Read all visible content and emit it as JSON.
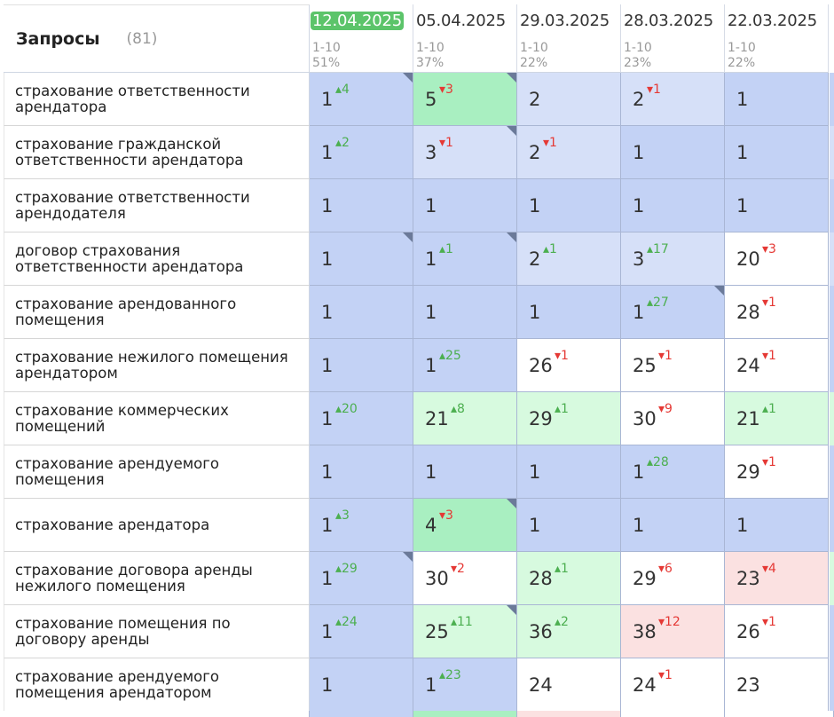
{
  "header": {
    "title": "Запросы",
    "count": "(81)"
  },
  "dates": [
    {
      "date": "12.04.2025",
      "range": "1-10",
      "pct": "51%",
      "active": true
    },
    {
      "date": "05.04.2025",
      "range": "1-10",
      "pct": "37%",
      "active": false
    },
    {
      "date": "29.03.2025",
      "range": "1-10",
      "pct": "22%",
      "active": false
    },
    {
      "date": "28.03.2025",
      "range": "1-10",
      "pct": "23%",
      "active": false
    },
    {
      "date": "22.03.2025",
      "range": "1-10",
      "pct": "22%",
      "active": false
    }
  ],
  "rows": [
    {
      "label": "страхование ответственности арендатора",
      "cells": [
        {
          "v": "1",
          "d": "4",
          "dir": "up",
          "c": "blue",
          "corner": true
        },
        {
          "v": "5",
          "d": "3",
          "dir": "down",
          "c": "green",
          "corner": true
        },
        {
          "v": "2",
          "d": "",
          "dir": "",
          "c": "lblue",
          "corner": false
        },
        {
          "v": "2",
          "d": "1",
          "dir": "down",
          "c": "lblue",
          "corner": false
        },
        {
          "v": "1",
          "d": "",
          "dir": "",
          "c": "blue",
          "corner": false
        }
      ]
    },
    {
      "label": "страхование гражданской ответственности арендатора",
      "cells": [
        {
          "v": "1",
          "d": "2",
          "dir": "up",
          "c": "blue",
          "corner": false
        },
        {
          "v": "3",
          "d": "1",
          "dir": "down",
          "c": "lblue",
          "corner": true
        },
        {
          "v": "2",
          "d": "1",
          "dir": "down",
          "c": "lblue",
          "corner": false
        },
        {
          "v": "1",
          "d": "",
          "dir": "",
          "c": "blue",
          "corner": false
        },
        {
          "v": "1",
          "d": "",
          "dir": "",
          "c": "blue",
          "corner": false
        }
      ]
    },
    {
      "label": "страхование ответственности арендодателя",
      "cells": [
        {
          "v": "1",
          "d": "",
          "dir": "",
          "c": "blue",
          "corner": false
        },
        {
          "v": "1",
          "d": "",
          "dir": "",
          "c": "blue",
          "corner": false
        },
        {
          "v": "1",
          "d": "",
          "dir": "",
          "c": "blue",
          "corner": false
        },
        {
          "v": "1",
          "d": "",
          "dir": "",
          "c": "blue",
          "corner": false
        },
        {
          "v": "1",
          "d": "",
          "dir": "",
          "c": "blue",
          "corner": false
        }
      ]
    },
    {
      "label": "договор страхования ответственности арендатора",
      "cells": [
        {
          "v": "1",
          "d": "",
          "dir": "",
          "c": "blue",
          "corner": true
        },
        {
          "v": "1",
          "d": "1",
          "dir": "up",
          "c": "blue",
          "corner": true
        },
        {
          "v": "2",
          "d": "1",
          "dir": "up",
          "c": "lblue",
          "corner": false
        },
        {
          "v": "3",
          "d": "17",
          "dir": "up",
          "c": "lblue",
          "corner": false
        },
        {
          "v": "20",
          "d": "3",
          "dir": "down",
          "c": "white",
          "corner": false
        }
      ]
    },
    {
      "label": "страхование арендованного помещения",
      "cells": [
        {
          "v": "1",
          "d": "",
          "dir": "",
          "c": "blue",
          "corner": false
        },
        {
          "v": "1",
          "d": "",
          "dir": "",
          "c": "blue",
          "corner": false
        },
        {
          "v": "1",
          "d": "",
          "dir": "",
          "c": "blue",
          "corner": false
        },
        {
          "v": "1",
          "d": "27",
          "dir": "up",
          "c": "blue",
          "corner": true
        },
        {
          "v": "28",
          "d": "1",
          "dir": "down",
          "c": "white",
          "corner": false
        }
      ]
    },
    {
      "label": "страхование нежилого помещения арендатором",
      "cells": [
        {
          "v": "1",
          "d": "",
          "dir": "",
          "c": "blue",
          "corner": false
        },
        {
          "v": "1",
          "d": "25",
          "dir": "up",
          "c": "blue",
          "corner": false
        },
        {
          "v": "26",
          "d": "1",
          "dir": "down",
          "c": "white",
          "corner": false
        },
        {
          "v": "25",
          "d": "1",
          "dir": "down",
          "c": "white",
          "corner": false
        },
        {
          "v": "24",
          "d": "1",
          "dir": "down",
          "c": "white",
          "corner": false
        }
      ]
    },
    {
      "label": "страхование коммерческих помещений",
      "cells": [
        {
          "v": "1",
          "d": "20",
          "dir": "up",
          "c": "blue",
          "corner": false
        },
        {
          "v": "21",
          "d": "8",
          "dir": "up",
          "c": "lgreen",
          "corner": false
        },
        {
          "v": "29",
          "d": "1",
          "dir": "up",
          "c": "lgreen",
          "corner": false
        },
        {
          "v": "30",
          "d": "9",
          "dir": "down",
          "c": "white",
          "corner": false
        },
        {
          "v": "21",
          "d": "1",
          "dir": "up",
          "c": "lgreen",
          "corner": false
        }
      ]
    },
    {
      "label": "страхование арендуемого помещения",
      "cells": [
        {
          "v": "1",
          "d": "",
          "dir": "",
          "c": "blue",
          "corner": false
        },
        {
          "v": "1",
          "d": "",
          "dir": "",
          "c": "blue",
          "corner": false
        },
        {
          "v": "1",
          "d": "",
          "dir": "",
          "c": "blue",
          "corner": false
        },
        {
          "v": "1",
          "d": "28",
          "dir": "up",
          "c": "blue",
          "corner": false
        },
        {
          "v": "29",
          "d": "1",
          "dir": "down",
          "c": "white",
          "corner": false
        }
      ]
    },
    {
      "label": "страхование арендатора",
      "cells": [
        {
          "v": "1",
          "d": "3",
          "dir": "up",
          "c": "blue",
          "corner": false
        },
        {
          "v": "4",
          "d": "3",
          "dir": "down",
          "c": "green",
          "corner": true
        },
        {
          "v": "1",
          "d": "",
          "dir": "",
          "c": "blue",
          "corner": false
        },
        {
          "v": "1",
          "d": "",
          "dir": "",
          "c": "blue",
          "corner": false
        },
        {
          "v": "1",
          "d": "",
          "dir": "",
          "c": "blue",
          "corner": false
        }
      ]
    },
    {
      "label": "страхование договора аренды нежилого помещения",
      "cells": [
        {
          "v": "1",
          "d": "29",
          "dir": "up",
          "c": "blue",
          "corner": true
        },
        {
          "v": "30",
          "d": "2",
          "dir": "down",
          "c": "white",
          "corner": false
        },
        {
          "v": "28",
          "d": "1",
          "dir": "up",
          "c": "lgreen",
          "corner": false
        },
        {
          "v": "29",
          "d": "6",
          "dir": "down",
          "c": "white",
          "corner": false
        },
        {
          "v": "23",
          "d": "4",
          "dir": "down",
          "c": "pink",
          "corner": false
        }
      ]
    },
    {
      "label": "страхование помещения по договору аренды",
      "cells": [
        {
          "v": "1",
          "d": "24",
          "dir": "up",
          "c": "blue",
          "corner": false
        },
        {
          "v": "25",
          "d": "11",
          "dir": "up",
          "c": "lgreen",
          "corner": true
        },
        {
          "v": "36",
          "d": "2",
          "dir": "up",
          "c": "lgreen",
          "corner": false
        },
        {
          "v": "38",
          "d": "12",
          "dir": "down",
          "c": "pink",
          "corner": false
        },
        {
          "v": "26",
          "d": "1",
          "dir": "down",
          "c": "white",
          "corner": false
        }
      ]
    },
    {
      "label": "страхование арендуемого помещения арендатором",
      "cells": [
        {
          "v": "1",
          "d": "",
          "dir": "",
          "c": "blue",
          "corner": false
        },
        {
          "v": "1",
          "d": "23",
          "dir": "up",
          "c": "blue",
          "corner": false
        },
        {
          "v": "24",
          "d": "",
          "dir": "",
          "c": "white",
          "corner": false
        },
        {
          "v": "24",
          "d": "1",
          "dir": "down",
          "c": "white",
          "corner": false
        },
        {
          "v": "23",
          "d": "",
          "dir": "",
          "c": "white",
          "corner": false
        }
      ]
    }
  ],
  "tail_colors": [
    "blue",
    "lblue",
    "blue",
    "lblue",
    "blue",
    "blue",
    "lgreen",
    "blue",
    "blue",
    "lgreen",
    "blue",
    "blue"
  ],
  "bottom_strip": [
    "white",
    "blue",
    "green",
    "pink",
    "white",
    "white"
  ],
  "colors": {
    "blue": "#c3d2f5",
    "lblue": "#d6e0f8",
    "green": "#a9efc1",
    "lgreen": "#d7fadf",
    "white": "#ffffff",
    "pink": "#fbe1e1",
    "up": "#4caf50",
    "down": "#e53935",
    "active_date": "#5cc46a"
  },
  "icons": {
    "up": "triangle-up-icon",
    "down": "triangle-down-icon",
    "corner": "corner-flag-icon"
  }
}
